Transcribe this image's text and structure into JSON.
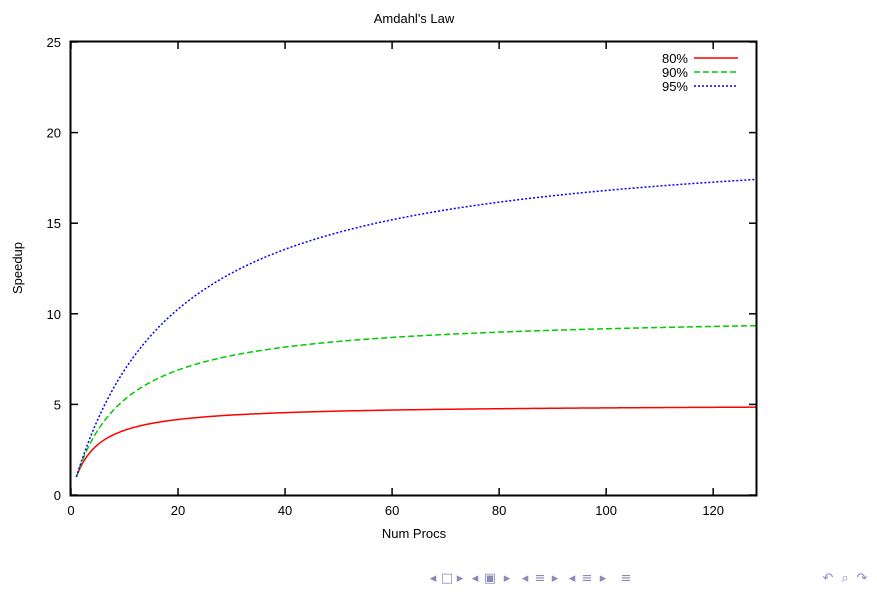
{
  "chart_data": {
    "type": "line",
    "title": "Amdahl's Law",
    "xlabel": "Num Procs",
    "ylabel": "Speedup",
    "xlim": [
      0,
      128
    ],
    "ylim": [
      0,
      25
    ],
    "xticks": [
      0,
      20,
      40,
      60,
      80,
      100,
      120
    ],
    "yticks": [
      0,
      5,
      10,
      15,
      20,
      25
    ],
    "grid": false,
    "legend_position": "top-right",
    "series": [
      {
        "name": "80%",
        "parallel_fraction": 0.8,
        "color": "#ff0000",
        "dash": "solid",
        "x": [
          1,
          2,
          4,
          8,
          16,
          32,
          64,
          128
        ],
        "values": [
          1.0,
          1.67,
          2.5,
          3.33,
          4.0,
          4.44,
          4.71,
          4.85
        ]
      },
      {
        "name": "90%",
        "parallel_fraction": 0.9,
        "color": "#00cc00",
        "dash": "dashed",
        "x": [
          1,
          2,
          4,
          8,
          16,
          32,
          64,
          128
        ],
        "values": [
          1.0,
          1.82,
          3.08,
          4.71,
          6.4,
          7.8,
          8.77,
          9.34
        ]
      },
      {
        "name": "95%",
        "parallel_fraction": 0.95,
        "color": "#0000ff",
        "dash": "dotted",
        "x": [
          1,
          2,
          4,
          8,
          16,
          32,
          64,
          128
        ],
        "values": [
          1.0,
          1.9,
          3.48,
          5.93,
          9.14,
          12.55,
          15.42,
          17.41
        ]
      }
    ]
  },
  "beamer_nav": {
    "icons": [
      "nav-frame-left-icon",
      "nav-frame-icon",
      "nav-frame-right-icon",
      "nav-subsection-left-icon",
      "nav-subsection-icon",
      "nav-subsection-right-icon",
      "nav-section-left-icon",
      "nav-section-icon",
      "nav-section-right-icon",
      "nav-align-icon",
      "nav-back-icon",
      "nav-search-icon",
      "nav-forward-icon"
    ]
  }
}
